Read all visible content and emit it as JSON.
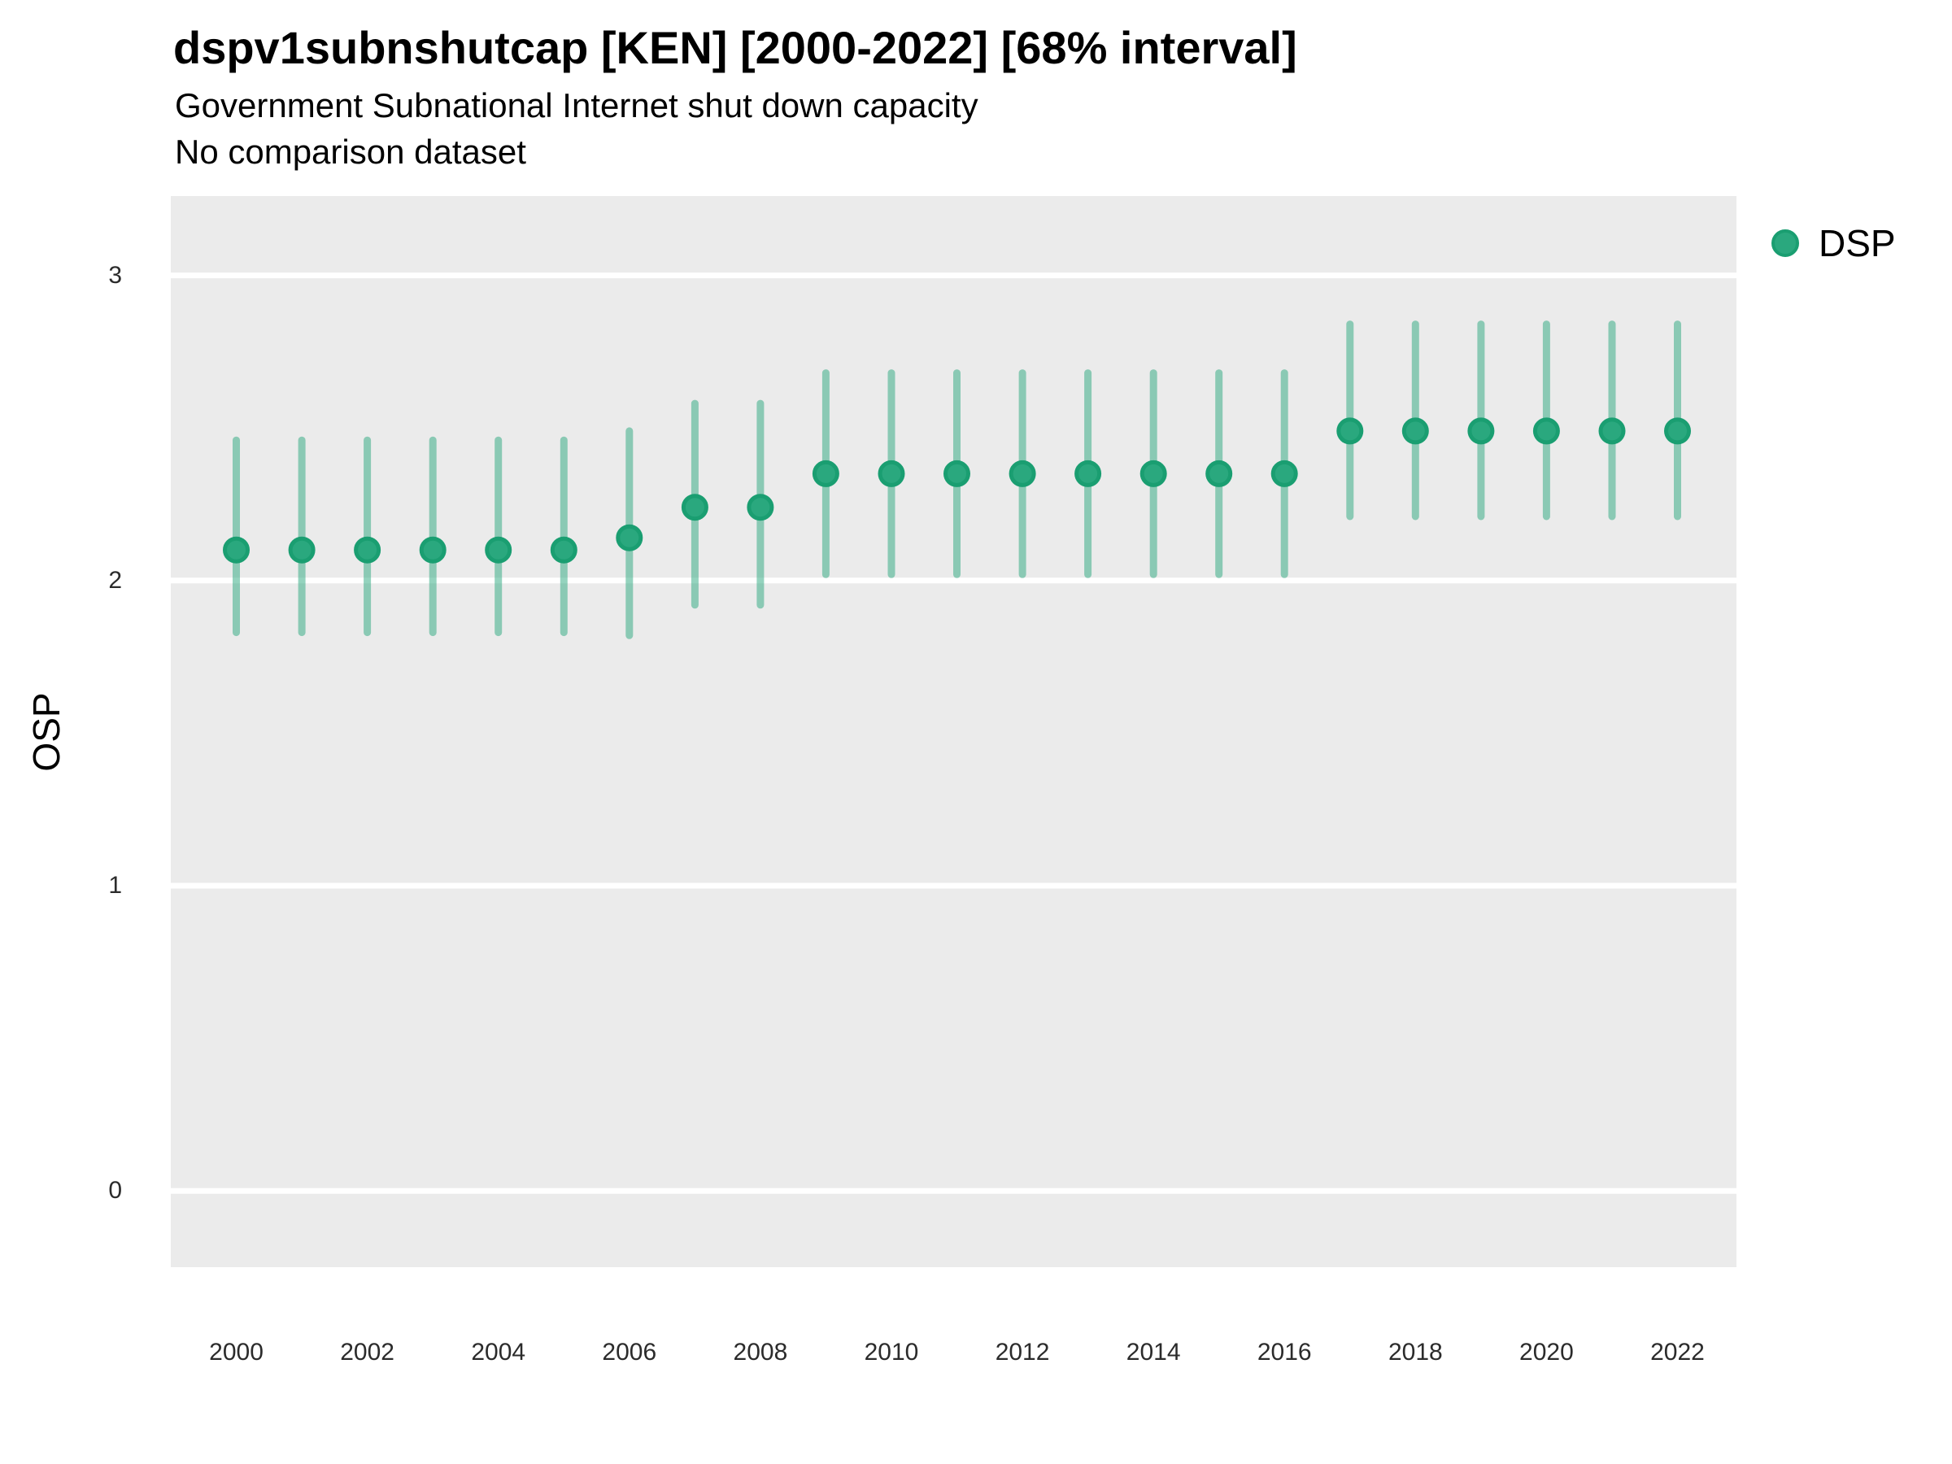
{
  "header": {
    "title": "dspv1subnshutcap [KEN] [2000-2022] [68% interval]",
    "subtitle": "Government Subnational Internet shut down capacity",
    "comparison_note": "No comparison dataset"
  },
  "legend": {
    "position": "right",
    "items": [
      {
        "label": "DSP",
        "marker": "circle",
        "color": "#2AA87E"
      }
    ]
  },
  "axes": {
    "y_label": "OSP",
    "y_ticks": [
      "3",
      "2",
      "1",
      "0"
    ],
    "y_tick_values": [
      3,
      2,
      1,
      0
    ],
    "x_ticks": [
      "2000",
      "2002",
      "2004",
      "2006",
      "2008",
      "2010",
      "2012",
      "2014",
      "2016",
      "2018",
      "2020",
      "2022"
    ],
    "x_tick_values": [
      2000,
      2002,
      2004,
      2006,
      2008,
      2010,
      2012,
      2014,
      2016,
      2018,
      2020,
      2022
    ]
  },
  "colors": {
    "panel_bg": "#EBEBEB",
    "gridline": "#FFFFFF",
    "point_fill": "#2AA87E",
    "point_stroke": "#1A9E71",
    "interval_bar": "rgba(42,168,126,0.5)",
    "title_text": "#000000",
    "tick_text": "#2B2B2B"
  },
  "chart_data": {
    "type": "scatter",
    "title": "dspv1subnshutcap [KEN] [2000-2022] [68% interval]",
    "subtitle": "Government Subnational Internet shut down capacity",
    "note": "No comparison dataset",
    "xlabel": "",
    "ylabel": "OSP",
    "interval": "68%",
    "grid": "horizontal-major-only",
    "legend_position": "right",
    "xlim": [
      1999.0,
      2022.9
    ],
    "ylim": [
      -0.25,
      3.26
    ],
    "series": [
      {
        "name": "DSP",
        "x": [
          2000,
          2001,
          2002,
          2003,
          2004,
          2005,
          2006,
          2007,
          2008,
          2009,
          2010,
          2011,
          2012,
          2013,
          2014,
          2015,
          2016,
          2017,
          2018,
          2019,
          2020,
          2021,
          2022
        ],
        "y": [
          2.1,
          2.1,
          2.1,
          2.1,
          2.1,
          2.1,
          2.14,
          2.24,
          2.24,
          2.35,
          2.35,
          2.35,
          2.35,
          2.35,
          2.35,
          2.35,
          2.35,
          2.49,
          2.49,
          2.49,
          2.49,
          2.49,
          2.49
        ],
        "lower": [
          1.83,
          1.83,
          1.83,
          1.83,
          1.83,
          1.83,
          1.82,
          1.92,
          1.92,
          2.02,
          2.02,
          2.02,
          2.02,
          2.02,
          2.02,
          2.02,
          2.02,
          2.21,
          2.21,
          2.21,
          2.21,
          2.21,
          2.21
        ],
        "upper": [
          2.46,
          2.46,
          2.46,
          2.46,
          2.46,
          2.46,
          2.49,
          2.58,
          2.58,
          2.68,
          2.68,
          2.68,
          2.68,
          2.68,
          2.68,
          2.68,
          2.68,
          2.84,
          2.84,
          2.84,
          2.84,
          2.84,
          2.84
        ]
      }
    ]
  }
}
